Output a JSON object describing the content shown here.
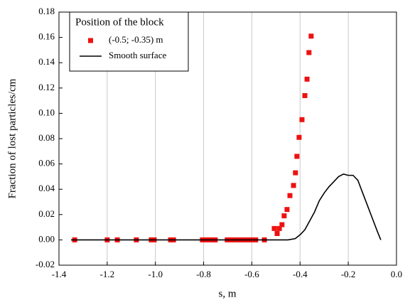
{
  "chart_data": {
    "type": "scatter",
    "xlabel": "s, m",
    "ylabel": "Fraction of lost particles/cm",
    "xlim": [
      -1.4,
      0.0
    ],
    "xticks": [
      -1.4,
      -1.2,
      {
        "value": -1.0,
        "label": "-1.0"
      },
      -0.8,
      -0.6,
      -0.4,
      -0.2,
      {
        "value": 0.0,
        "label": "0.0"
      }
    ],
    "ylim": [
      -0.02,
      0.18
    ],
    "yticks": [
      -0.02,
      {
        "value": 0.0,
        "label": "0.00"
      },
      0.02,
      0.04,
      0.06,
      0.08,
      {
        "value": 0.1,
        "label": "0.10"
      },
      0.12,
      0.14,
      0.16,
      0.18
    ],
    "grid": "x",
    "legend_title": "Position of the block",
    "legend_position": "upper left",
    "series": [
      {
        "name": "(-0.5; -0.35) m",
        "type": "scatter",
        "color": "#ee1111",
        "x": [
          -1.335,
          -1.2,
          -1.158,
          -1.079,
          -1.017,
          -1.005,
          -0.937,
          -0.925,
          -0.805,
          -0.79,
          -0.775,
          -0.76,
          -0.752,
          -0.702,
          -0.687,
          -0.672,
          -0.657,
          -0.643,
          -0.628,
          -0.613,
          -0.598,
          -0.584,
          -0.548,
          -0.507,
          -0.495,
          -0.486,
          -0.475,
          -0.466,
          -0.454,
          -0.442,
          -0.427,
          -0.419,
          -0.413,
          -0.404,
          -0.392,
          -0.38,
          -0.371,
          -0.363,
          -0.354
        ],
        "values": [
          0,
          0,
          0,
          0,
          0,
          0,
          0,
          0,
          0,
          0,
          0,
          0,
          0,
          0,
          0,
          0,
          0,
          0,
          0,
          0,
          0,
          0,
          0,
          0.009,
          0.005,
          0.009,
          0.012,
          0.019,
          0.024,
          0.035,
          0.043,
          0.053,
          0.066,
          0.081,
          0.095,
          0.114,
          0.127,
          0.148,
          0.161
        ]
      },
      {
        "name": "Smooth surface",
        "type": "line",
        "color": "#000000",
        "x": [
          -1.35,
          -0.45,
          -0.42,
          -0.4,
          -0.38,
          -0.36,
          -0.34,
          -0.32,
          -0.3,
          -0.28,
          -0.26,
          -0.24,
          -0.22,
          -0.2,
          -0.18,
          -0.16,
          -0.14,
          -0.12,
          -0.1,
          -0.08,
          -0.065
        ],
        "values": [
          0,
          0,
          0.001,
          0.004,
          0.008,
          0.015,
          0.022,
          0.031,
          0.037,
          0.042,
          0.046,
          0.05,
          0.052,
          0.051,
          0.051,
          0.047,
          0.037,
          0.027,
          0.017,
          0.007,
          0
        ]
      }
    ]
  }
}
